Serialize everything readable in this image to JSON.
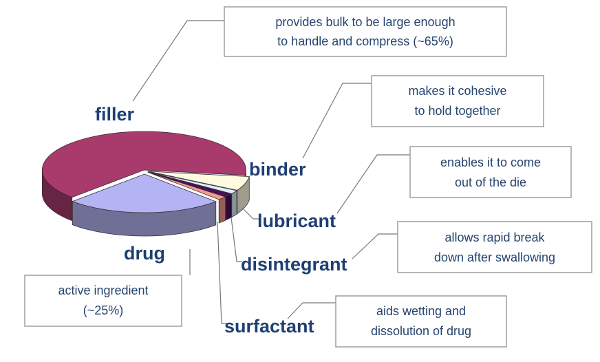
{
  "chart_data": {
    "type": "pie",
    "style": "3d-exploded",
    "slices": [
      {
        "name": "filler",
        "value": 65,
        "color": "#a83a6c"
      },
      {
        "name": "binder",
        "value": 6,
        "color": "#fffbe0"
      },
      {
        "name": "lubricant",
        "value": 1.5,
        "color": "#d8f2f5"
      },
      {
        "name": "disintegrant",
        "value": 1.5,
        "color": "#4a0f5c"
      },
      {
        "name": "surfactant",
        "value": 1.5,
        "color": "#f49a8a"
      },
      {
        "name": "drug",
        "value": 25,
        "color": "#b4b4f4"
      }
    ],
    "labels": {
      "filler": "filler",
      "binder": "binder",
      "lubricant": "lubricant",
      "disintegrant": "disintegrant",
      "surfactant": "surfactant",
      "drug": "drug"
    },
    "notes": {
      "filler": [
        "provides bulk to be large enough",
        "to handle and compress (~65%)"
      ],
      "binder": [
        "makes it cohesive",
        "to hold together"
      ],
      "lubricant": [
        "enables it to come",
        "out of the die"
      ],
      "disintegrant": [
        "allows rapid break",
        "down after swallowing"
      ],
      "surfactant": [
        "aids wetting and",
        "dissolution of drug"
      ],
      "drug": [
        "active ingredient",
        "(~25%)"
      ]
    }
  }
}
